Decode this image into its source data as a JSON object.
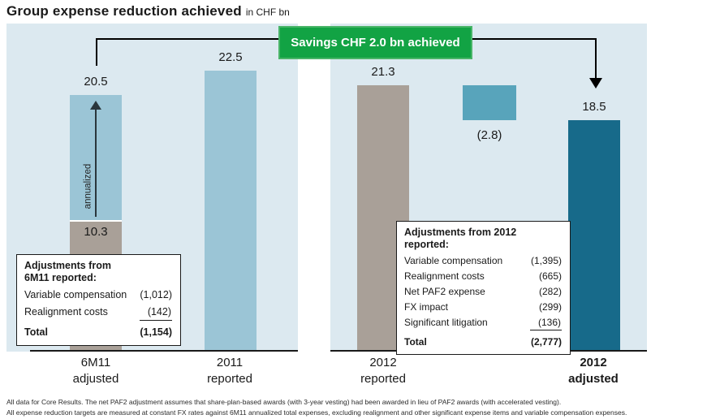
{
  "title": {
    "text": "Group expense reduction achieved",
    "unit": "in CHF bn"
  },
  "banner": {
    "text": "Savings CHF 2.0 bn achieved"
  },
  "colors": {
    "panel_bg": "#dce9f0",
    "light_blue": "#9bc5d6",
    "tan": "#a9a098",
    "teal_mid": "#58a4bb",
    "teal_dark": "#176a8a",
    "green": "#12a344",
    "axis": "#1a1a1a"
  },
  "chart_data": {
    "type": "bar",
    "title": "Group expense reduction achieved",
    "unit": "in CHF bn",
    "ylim": [
      0,
      24
    ],
    "grid": false,
    "legend": "none",
    "annotation_banner": "Savings CHF 2.0 bn achieved",
    "bars": [
      {
        "panel": "left",
        "category": "6M11 adjusted",
        "total": 20.5,
        "total_label": "20.5",
        "segments": [
          {
            "name": "6M11 reported",
            "value": 10.3,
            "label": "10.3",
            "color": "#a9a098"
          },
          {
            "name": "annualized uplift",
            "value": 10.2,
            "label": "annualized",
            "color": "#9bc5d6"
          }
        ]
      },
      {
        "panel": "left",
        "category": "2011 reported",
        "value": 22.5,
        "label": "22.5",
        "color": "#9bc5d6"
      },
      {
        "panel": "right",
        "category": "2012 reported",
        "value": 21.3,
        "label": "21.3",
        "color": "#a9a098"
      },
      {
        "panel": "right",
        "category": "savings bridge",
        "value": 2.8,
        "label": "(2.8)",
        "top": 21.3,
        "bottom": 18.5,
        "color": "#58a4bb"
      },
      {
        "panel": "right",
        "category": "2012 adjusted",
        "value": 18.5,
        "label": "18.5",
        "color": "#176a8a"
      }
    ]
  },
  "axis_labels": [
    {
      "line1": "6M11",
      "line2": "adjusted"
    },
    {
      "line1": "2011",
      "line2": "reported"
    },
    {
      "line1": "2012",
      "line2": "reported"
    },
    {
      "line1": "2012",
      "line2": "adjusted"
    }
  ],
  "left_box": {
    "title_line1": "Adjustments from",
    "title_line2": "6M11 reported:",
    "rows": [
      {
        "label": "Variable compensation",
        "value": "(1,012)"
      },
      {
        "label": "Realignment costs",
        "value": "(142)"
      }
    ],
    "total_label": "Total",
    "total_value": "(1,154)"
  },
  "right_box": {
    "title": "Adjustments from 2012 reported:",
    "rows": [
      {
        "label": "Variable compensation",
        "value": "(1,395)"
      },
      {
        "label": "Realignment costs",
        "value": "(665)"
      },
      {
        "label": "Net PAF2 expense",
        "value": "(282)"
      },
      {
        "label": "FX impact",
        "value": "(299)"
      },
      {
        "label": "Significant litigation",
        "value": "(136)"
      }
    ],
    "total_label": "Total",
    "total_value": "(2,777)"
  },
  "footnotes": [
    "All data for Core Results. The net PAF2 adjustment assumes that share-plan-based awards (with 3-year vesting) had been awarded in lieu of PAF2 awards (with accelerated vesting).",
    "All expense reduction targets are measured at constant FX rates against 6M11 annualized total expenses, excluding realignment and other significant expense items and variable compensation expenses."
  ]
}
